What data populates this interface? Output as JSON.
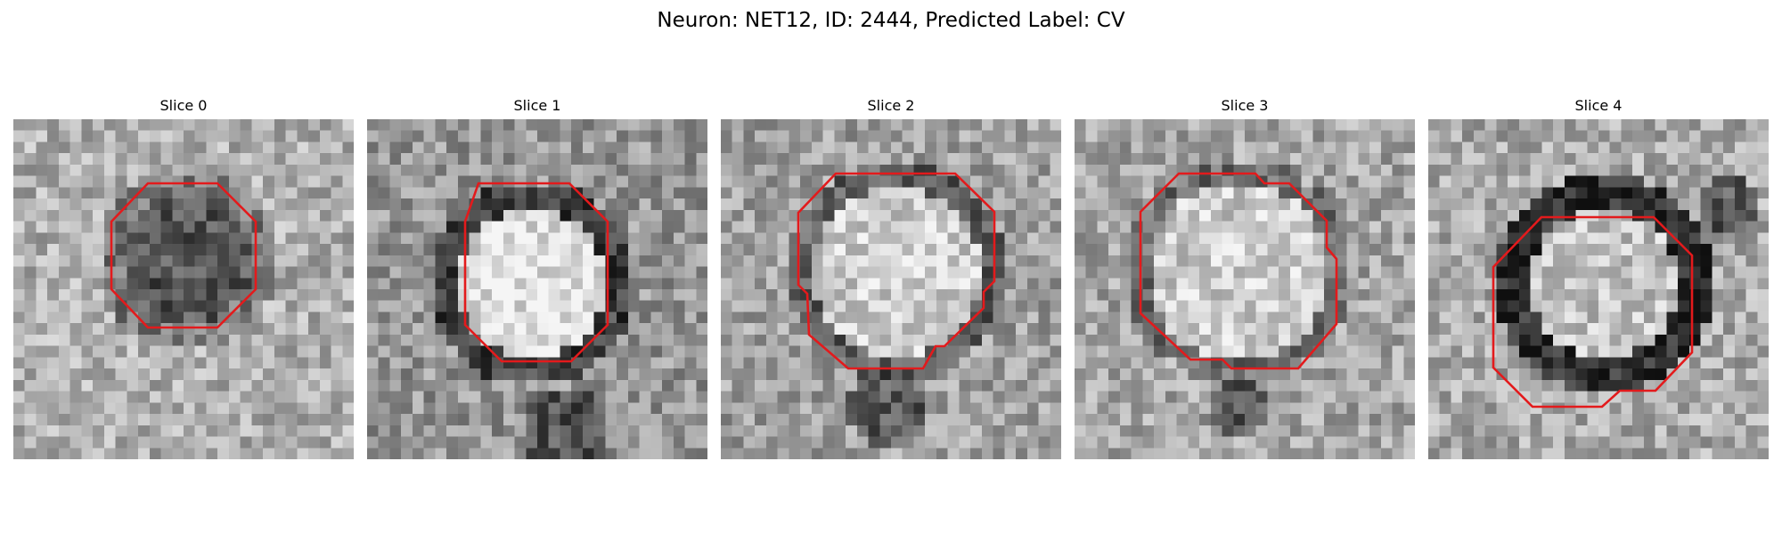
{
  "figure": {
    "title": "Neuron: NET12, ID: 2444, Predicted Label: CV"
  },
  "panels": [
    {
      "title": "Slice 0",
      "center_brightness": "dark",
      "outline_color": "#e31a1c"
    },
    {
      "title": "Slice 1",
      "center_brightness": "bright",
      "outline_color": "#e31a1c"
    },
    {
      "title": "Slice 2",
      "center_brightness": "bright",
      "outline_color": "#e31a1c"
    },
    {
      "title": "Slice 3",
      "center_brightness": "bright",
      "outline_color": "#e31a1c"
    },
    {
      "title": "Slice 4",
      "center_brightness": "bright",
      "outline_color": "#e31a1c"
    }
  ],
  "colors": {
    "outline": "#e31a1c",
    "colormap": "grayscale"
  }
}
